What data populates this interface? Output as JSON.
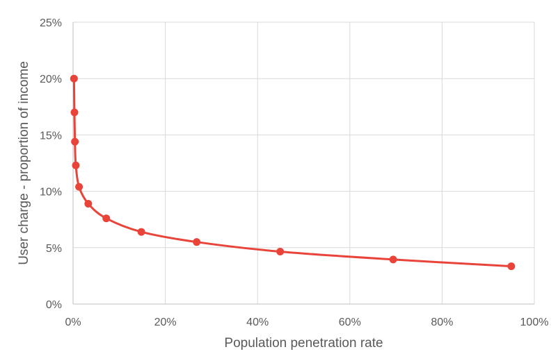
{
  "chart_data": {
    "type": "scatter",
    "title": "",
    "xlabel": "Population penetration rate",
    "ylabel": "User charge - proportion of income",
    "xlim": [
      0,
      100
    ],
    "ylim": [
      0,
      25
    ],
    "x_ticks": [
      0,
      20,
      40,
      60,
      80,
      100
    ],
    "y_ticks": [
      0,
      5,
      10,
      15,
      20,
      25
    ],
    "x_tick_labels": [
      "0%",
      "20%",
      "40%",
      "60%",
      "80%",
      "100%"
    ],
    "y_tick_labels": [
      "0%",
      "5%",
      "10%",
      "15%",
      "20%",
      "25%"
    ],
    "grid": true,
    "legend": "none",
    "series": [
      {
        "color": "#e8443a",
        "style": "smooth-line-with-markers",
        "x": [
          0.2,
          0.3,
          0.4,
          0.6,
          1.3,
          3.3,
          7.2,
          14.8,
          26.8,
          44.9,
          69.4,
          95.0
        ],
        "y": [
          20.0,
          17.0,
          14.4,
          12.3,
          10.4,
          8.9,
          7.6,
          6.4,
          5.5,
          4.65,
          3.95,
          3.35
        ]
      }
    ]
  }
}
